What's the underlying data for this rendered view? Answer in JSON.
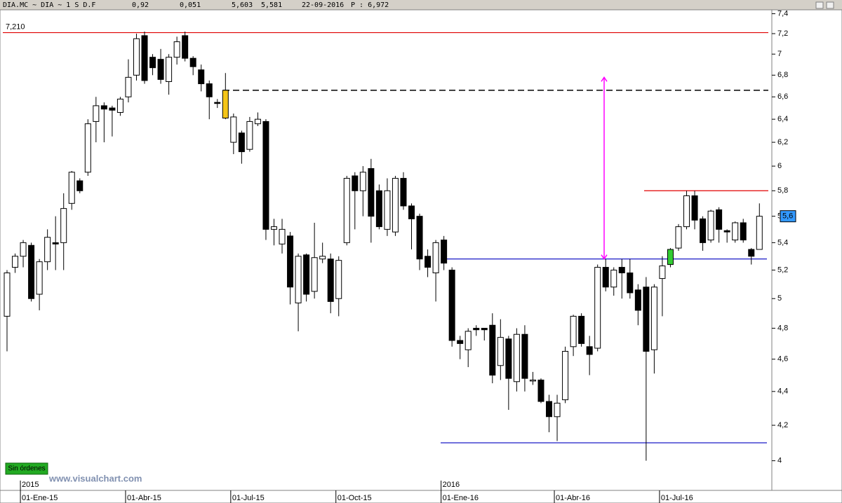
{
  "chart_data": {
    "type": "candlestick",
    "header": [
      "DIA.MC ~ DIA ~ 1 S D.F",
      "0,92",
      "0,051",
      "5,603",
      "5,581",
      "22-09-2016",
      "P : 6,972"
    ],
    "categories": [
      null,
      null,
      "01-Ene-15",
      null,
      null,
      null,
      null,
      null,
      null,
      null,
      null,
      null,
      null,
      null,
      null,
      "01-Abr-15",
      null,
      null,
      null,
      null,
      null,
      null,
      null,
      null,
      null,
      null,
      null,
      null,
      "01-Jul-15",
      null,
      null,
      null,
      null,
      null,
      null,
      null,
      null,
      null,
      null,
      null,
      null,
      "01-Oct-15",
      null,
      null,
      null,
      null,
      null,
      null,
      null,
      null,
      null,
      null,
      null,
      null,
      "01-Ene-16",
      null,
      null,
      null,
      null,
      null,
      null,
      null,
      null,
      null,
      null,
      null,
      null,
      null,
      "01-Abr-16",
      null,
      null,
      null,
      null,
      null,
      null,
      null,
      null,
      null,
      null,
      null,
      null,
      "01-Jul-16",
      null,
      null,
      null,
      null,
      null,
      null,
      null,
      null,
      null,
      null,
      null,
      null
    ],
    "year_labels": [
      "2015",
      "2016"
    ],
    "open": [
      4.88,
      5.22,
      5.3,
      5.38,
      5.03,
      5.26,
      5.4,
      5.4,
      5.7,
      5.88,
      5.95,
      6.38,
      6.52,
      6.5,
      6.46,
      6.6,
      6.8,
      7.18,
      6.97,
      6.95,
      6.74,
      6.97,
      7.18,
      6.96,
      6.85,
      6.72,
      6.55,
      6.66,
      6.2,
      6.28,
      6.14,
      6.36,
      6.38,
      5.5,
      5.39,
      5.45,
      4.97,
      5.31,
      5.05,
      5.28,
      5.28,
      5.0,
      5.4,
      5.92,
      5.8,
      5.98,
      5.8,
      5.5,
      5.48,
      5.9,
      5.68,
      5.6,
      5.3,
      5.18,
      5.42,
      5.2,
      4.72,
      4.66,
      4.8,
      4.8,
      4.82,
      4.56,
      4.73,
      4.46,
      4.76,
      4.47,
      4.47,
      4.34,
      4.25,
      4.35,
      4.68,
      4.88,
      4.68,
      4.67,
      5.22,
      5.08,
      5.22,
      5.18,
      5.06,
      5.08,
      4.66,
      5.14,
      5.24,
      5.36,
      5.52,
      5.76,
      5.58,
      5.42,
      5.65,
      5.49,
      5.42,
      5.55,
      5.35,
      5.35
    ],
    "high": [
      5.2,
      5.32,
      5.42,
      5.4,
      5.28,
      5.5,
      5.6,
      5.78,
      5.96,
      5.9,
      6.4,
      6.6,
      6.55,
      6.52,
      6.6,
      6.95,
      7.2,
      7.22,
      7.0,
      7.05,
      7.0,
      7.17,
      7.22,
      6.98,
      6.9,
      6.75,
      6.58,
      6.82,
      6.45,
      6.3,
      6.42,
      6.46,
      6.4,
      5.58,
      5.58,
      5.48,
      5.32,
      5.32,
      5.55,
      5.4,
      5.32,
      5.3,
      5.92,
      5.95,
      6.0,
      6.06,
      5.85,
      5.9,
      5.92,
      5.95,
      5.7,
      5.62,
      5.35,
      5.42,
      5.45,
      5.22,
      4.75,
      4.8,
      4.82,
      4.8,
      4.9,
      4.86,
      4.75,
      4.8,
      4.82,
      4.52,
      4.48,
      4.38,
      4.38,
      4.68,
      4.89,
      4.9,
      4.75,
      5.24,
      5.28,
      5.22,
      5.28,
      5.28,
      5.1,
      5.15,
      5.1,
      5.3,
      5.36,
      5.54,
      5.8,
      5.8,
      5.6,
      5.65,
      5.67,
      5.5,
      5.56,
      5.58,
      5.36,
      5.7
    ],
    "low": [
      4.65,
      5.18,
      5.22,
      4.98,
      4.92,
      5.2,
      5.2,
      5.2,
      5.65,
      5.78,
      5.92,
      6.2,
      6.2,
      6.25,
      6.43,
      6.55,
      6.75,
      6.72,
      6.8,
      6.72,
      6.62,
      6.9,
      6.93,
      6.8,
      6.65,
      6.4,
      6.5,
      6.4,
      6.1,
      6.02,
      6.12,
      6.34,
      5.42,
      5.38,
      5.32,
      4.96,
      4.78,
      4.98,
      5.0,
      5.25,
      4.9,
      4.88,
      5.38,
      5.5,
      5.6,
      5.4,
      5.5,
      5.45,
      5.45,
      5.65,
      5.35,
      5.2,
      5.15,
      4.98,
      5.2,
      4.68,
      4.6,
      4.55,
      4.75,
      4.72,
      4.45,
      4.47,
      4.29,
      4.4,
      4.4,
      4.44,
      4.33,
      4.16,
      4.11,
      4.33,
      4.62,
      4.68,
      4.5,
      4.65,
      5.05,
      5.02,
      5.0,
      5.0,
      4.82,
      4.0,
      4.51,
      4.88,
      5.22,
      5.34,
      5.5,
      5.5,
      5.34,
      5.4,
      5.4,
      5.4,
      5.4,
      5.4,
      5.24,
      5.35
    ],
    "close": [
      5.18,
      5.3,
      5.4,
      5.0,
      5.26,
      5.44,
      5.39,
      5.66,
      5.95,
      5.8,
      6.36,
      6.52,
      6.49,
      6.48,
      6.58,
      6.78,
      7.15,
      6.75,
      6.87,
      6.76,
      6.97,
      7.12,
      6.96,
      6.88,
      6.72,
      6.6,
      6.54,
      6.41,
      6.42,
      6.12,
      6.38,
      6.4,
      5.5,
      5.52,
      5.5,
      5.08,
      5.3,
      5.03,
      5.29,
      5.3,
      4.98,
      5.27,
      5.9,
      5.8,
      5.95,
      5.6,
      5.52,
      5.8,
      5.9,
      5.68,
      5.58,
      5.28,
      5.22,
      5.4,
      5.25,
      4.72,
      4.7,
      4.78,
      4.79,
      4.79,
      4.5,
      4.74,
      4.48,
      4.76,
      4.48,
      4.47,
      4.34,
      4.25,
      4.33,
      4.65,
      4.88,
      4.7,
      4.63,
      5.22,
      5.08,
      5.2,
      5.18,
      5.04,
      4.92,
      4.65,
      5.08,
      5.23,
      5.35,
      5.52,
      5.76,
      5.57,
      5.4,
      5.64,
      5.5,
      5.48,
      5.55,
      5.42,
      5.3,
      5.6
    ],
    "candle_colors": [
      null,
      null,
      null,
      null,
      null,
      null,
      null,
      null,
      null,
      null,
      null,
      null,
      null,
      null,
      null,
      null,
      null,
      null,
      null,
      null,
      null,
      null,
      null,
      null,
      null,
      null,
      null,
      "#f5c518",
      null,
      null,
      null,
      null,
      null,
      null,
      null,
      null,
      null,
      null,
      null,
      null,
      null,
      null,
      null,
      null,
      null,
      null,
      null,
      null,
      null,
      null,
      null,
      null,
      null,
      null,
      null,
      null,
      null,
      null,
      null,
      null,
      null,
      null,
      null,
      null,
      null,
      null,
      null,
      null,
      null,
      null,
      null,
      null,
      null,
      null,
      null,
      null,
      null,
      null,
      null,
      null,
      null,
      null,
      "#33cc33",
      null,
      null,
      null,
      null,
      null,
      null,
      null,
      null,
      null,
      null,
      null
    ],
    "log_y": true,
    "ylim": [
      3.84,
      7.44
    ],
    "yticks": [
      {
        "value": 7.4,
        "label": "7,4"
      },
      {
        "value": 7.2,
        "label": "7,2"
      },
      7,
      {
        "value": 6.8,
        "label": "6,8"
      },
      {
        "value": 6.6,
        "label": "6,6"
      },
      {
        "value": 6.4,
        "label": "6,4"
      },
      {
        "value": 6.2,
        "label": "6,2"
      },
      6,
      {
        "value": 5.8,
        "label": "5,8"
      },
      {
        "value": 5.6,
        "label": "5,6"
      },
      {
        "value": 5.4,
        "label": "5,4"
      },
      {
        "value": 5.2,
        "label": "5,2"
      },
      5,
      {
        "value": 4.8,
        "label": "4,8"
      },
      {
        "value": 4.6,
        "label": "4,6"
      },
      {
        "value": 4.4,
        "label": "4,4"
      },
      {
        "value": 4.2,
        "label": "4,2"
      },
      4
    ],
    "levels": [
      {
        "value": 7.21,
        "label": "7,210",
        "color": "#e00000",
        "style": "solid"
      },
      {
        "value": 6.66,
        "color": "#000000",
        "style": "dashed"
      },
      {
        "value": 5.8,
        "color": "#e00000",
        "style": "solid"
      },
      {
        "value": 5.28,
        "color": "#0000c0",
        "style": "solid"
      },
      {
        "value": 4.1,
        "color": "#0000c0",
        "style": "solid"
      }
    ],
    "arrow": {
      "from": 5.28,
      "to": 6.78,
      "color": "#ff00ff"
    },
    "last_price": {
      "value": 5.6,
      "label": "5,6"
    },
    "status": "Sin órdenes",
    "watermark": "www.visualchart.com"
  }
}
